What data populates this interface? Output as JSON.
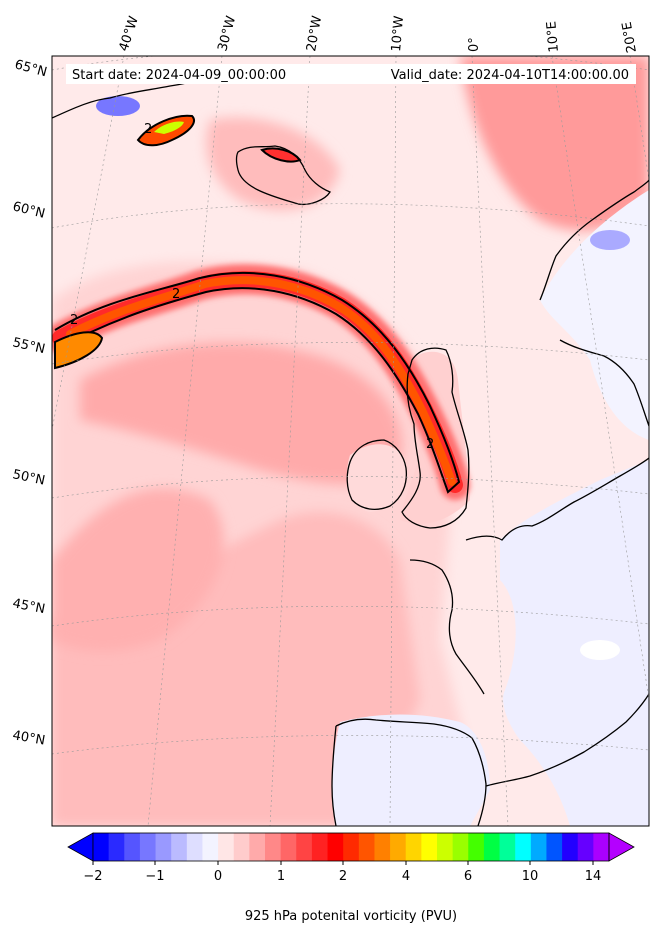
{
  "header": {
    "start_date": "Start date: 2024-04-09_00:00:00",
    "valid_date": "Valid_date: 2024-04-10T14:00:00.00"
  },
  "map": {
    "projection": "conic",
    "longitude_labels": [
      "40°W",
      "30°W",
      "20°W",
      "10°W",
      "0°",
      "10°E",
      "20°E"
    ],
    "latitude_labels": [
      "65°N",
      "60°N",
      "55°N",
      "50°N",
      "45°N",
      "40°N"
    ],
    "contour_labels": [
      "2",
      "2",
      "2",
      "2"
    ],
    "contour_level": 2,
    "gridlines": true
  },
  "colorbar": {
    "ticks": [
      "−2",
      "−1",
      "0",
      "1",
      "2",
      "4",
      "6",
      "10",
      "14"
    ],
    "label": "925 hPa potenital vorticity (PVU)",
    "extend": "both",
    "colors": [
      "#0000ff",
      "#2a2aff",
      "#5555ff",
      "#7777ff",
      "#9999ff",
      "#bbbbff",
      "#dedeff",
      "#f3f3ff",
      "#ffe6e6",
      "#ffcccc",
      "#ffaaaa",
      "#ff8888",
      "#ff6666",
      "#ff4444",
      "#ff2222",
      "#ff0000",
      "#ff2a00",
      "#ff5500",
      "#ff8000",
      "#ffaa00",
      "#ffd500",
      "#ffff00",
      "#ccff00",
      "#99ff00",
      "#44ff00",
      "#00ff44",
      "#00ff99",
      "#00ffff",
      "#00aaff",
      "#0055ff",
      "#2200ff",
      "#6600ff",
      "#aa00ff"
    ],
    "under_color": "#0000ff",
    "over_color": "#b400ff"
  }
}
